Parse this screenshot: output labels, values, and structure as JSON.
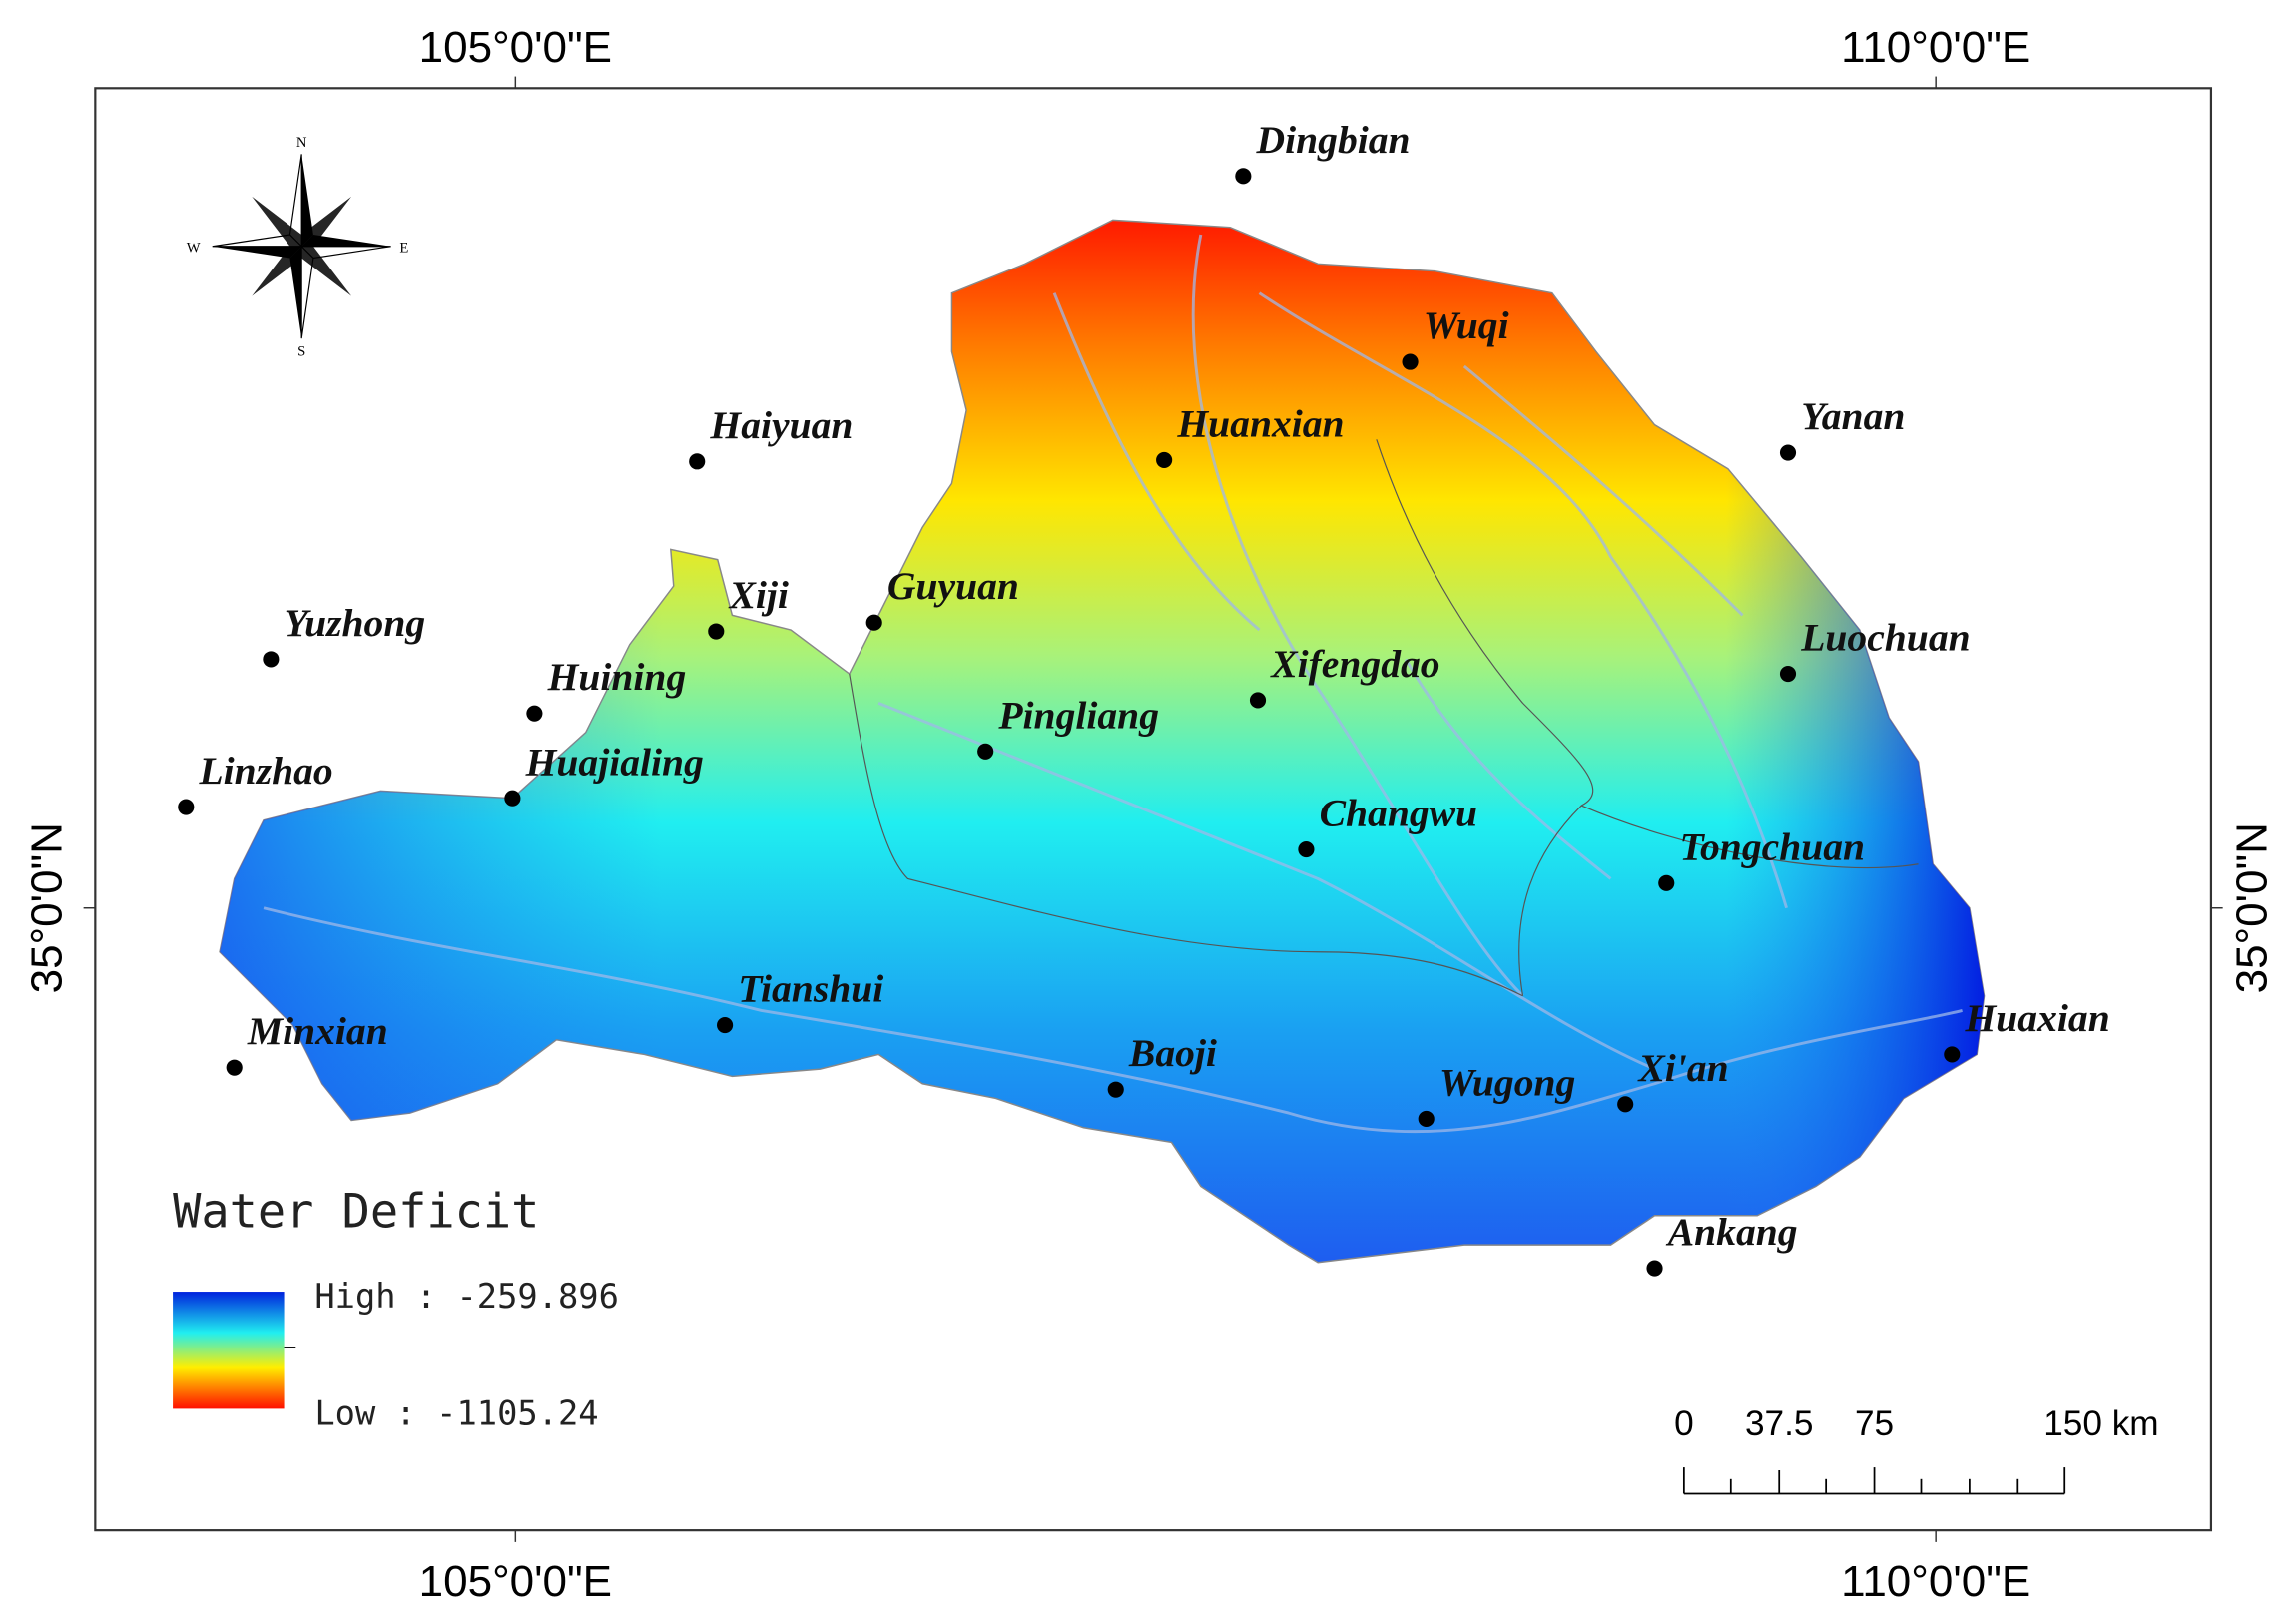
{
  "map": {
    "longitude_labels": [
      "105°0'0\"E",
      "110°0'0\"E"
    ],
    "latitude_label": "35°0'0\"N",
    "compass": {
      "n": "N",
      "s": "S",
      "e": "E",
      "w": "W"
    },
    "cities": [
      "Dingbian",
      "Wuqi",
      "Huanxian",
      "Yanan",
      "Haiyuan",
      "Xiji",
      "Guyuan",
      "Yuzhong",
      "Huining",
      "Luochuan",
      "Xifengdao",
      "Pingliang",
      "Linzhao",
      "Huajialing",
      "Changwu",
      "Tongchuan",
      "Tianshui",
      "Huaxian",
      "Minxian",
      "Baoji",
      "Wugong",
      "Xi'an",
      "Ankang"
    ],
    "legend": {
      "title": "Water Deficit",
      "high": "High : -259.896",
      "low": "Low : -1105.24"
    },
    "scale_bar": [
      "0",
      "37.5",
      "75",
      "150 km"
    ]
  }
}
